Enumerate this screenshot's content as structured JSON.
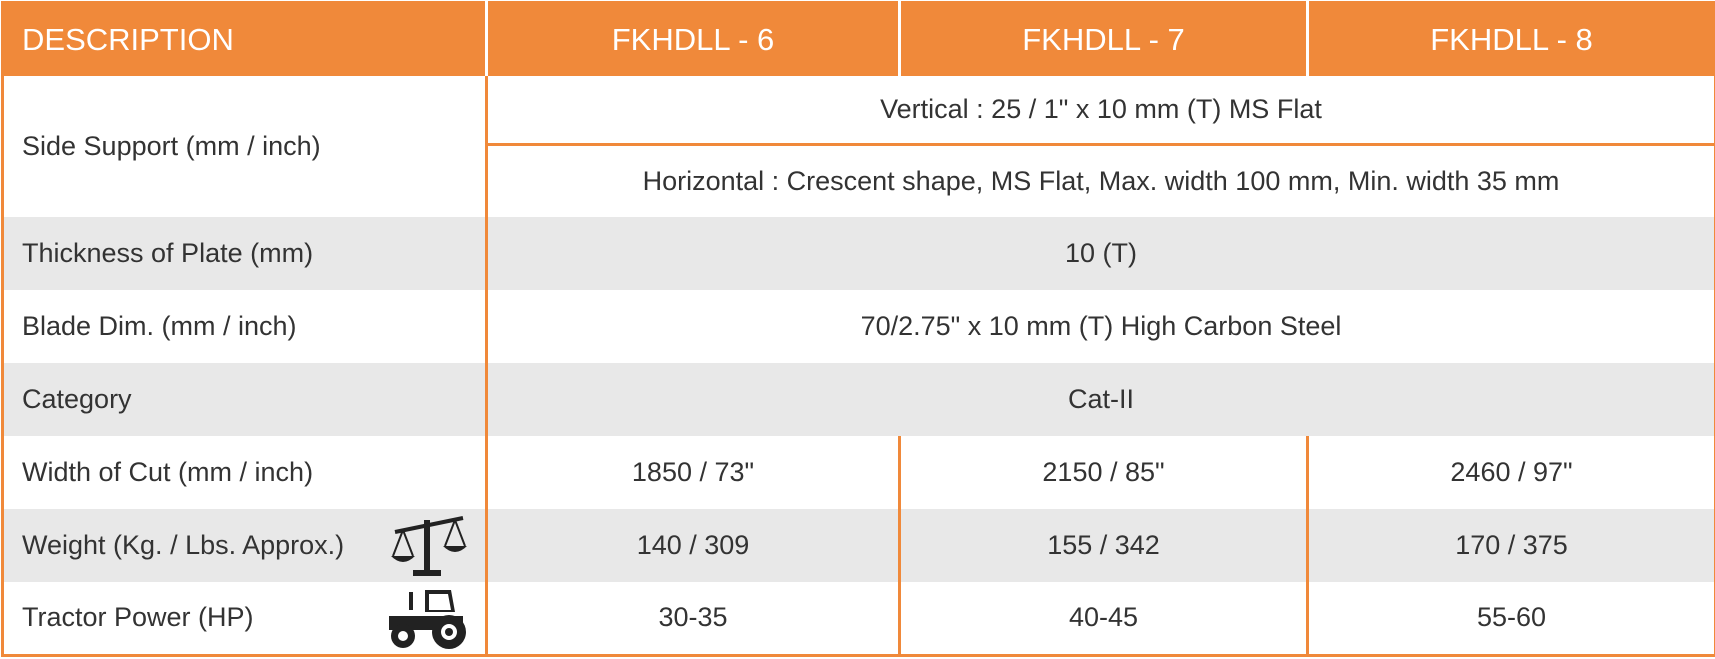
{
  "table": {
    "header": [
      "DESCRIPTION",
      "FKHDLL - 6",
      "FKHDLL - 7",
      "FKHDLL - 8"
    ],
    "rows": [
      {
        "label": "Side Support (mm / inch)",
        "values": [
          "Vertical : 25 / 1\" x 10 mm (T) MS Flat",
          "Horizontal : Crescent shape, MS Flat, Max. width 100 mm, Min. width 35 mm"
        ]
      },
      {
        "label": "Thickness of Plate (mm)",
        "values": [
          "10 (T)"
        ]
      },
      {
        "label": "Blade Dim. (mm / inch)",
        "values": [
          "70/2.75\" x 10 mm (T) High Carbon Steel"
        ]
      },
      {
        "label": "Category",
        "values": [
          "Cat-II"
        ]
      },
      {
        "label": "Width of Cut (mm / inch)",
        "values": [
          "1850 / 73\"",
          "2150 / 85\"",
          "2460 / 97\""
        ]
      },
      {
        "label": "Weight (Kg. / Lbs. Approx.)",
        "values": [
          "140 / 309",
          "155 / 342",
          "170 / 375"
        ]
      },
      {
        "label": "Tractor Power (HP)",
        "values": [
          "30-35",
          "40-45",
          "55-60"
        ]
      }
    ]
  }
}
